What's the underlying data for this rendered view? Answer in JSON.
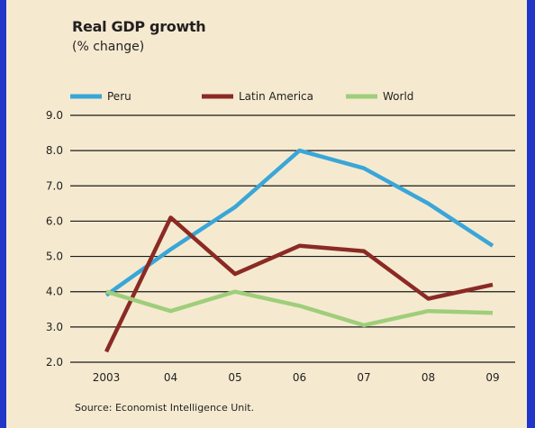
{
  "chart_data": {
    "type": "line",
    "title": "Real GDP growth",
    "subtitle": "(% change)",
    "source": "Source: Economist Intelligence Unit.",
    "categories": [
      "2003",
      "04",
      "05",
      "06",
      "07",
      "08",
      "09"
    ],
    "ylim": [
      2.0,
      9.0
    ],
    "yticks": [
      "9.0",
      "8.0",
      "7.0",
      "6.0",
      "5.0",
      "4.0",
      "3.0",
      "2.0"
    ],
    "grid": true,
    "legend_position": "top",
    "series": [
      {
        "name": "Peru",
        "color": "#3aa6d8",
        "values": [
          3.9,
          5.2,
          6.4,
          8.0,
          7.5,
          6.5,
          5.3
        ]
      },
      {
        "name": "Latin America",
        "color": "#8b2a24",
        "values": [
          2.3,
          6.1,
          4.5,
          5.3,
          5.15,
          3.8,
          4.2
        ]
      },
      {
        "name": "World",
        "color": "#9fce7a",
        "values": [
          4.0,
          3.45,
          4.0,
          3.6,
          3.05,
          3.45,
          3.4
        ]
      }
    ]
  },
  "colors": {
    "panel_background": "#f5ead0",
    "frame_blue": "#1f36c9"
  }
}
